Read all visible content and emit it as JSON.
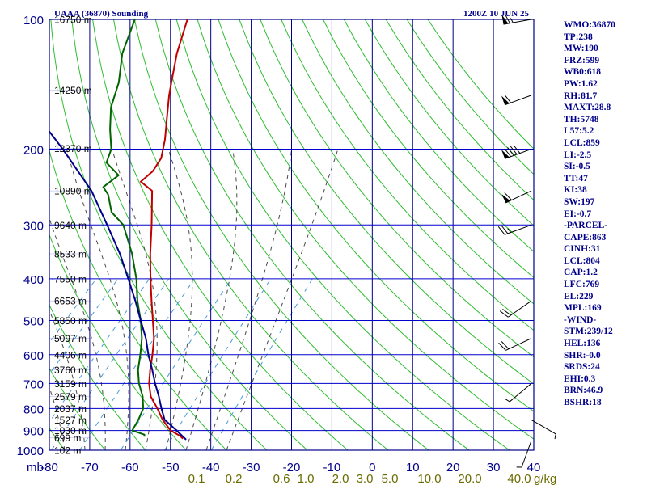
{
  "header": {
    "station": "UAAA (36870) Sounding",
    "valid": "1200Z 10 JUN 25"
  },
  "colors": {
    "background": "#ffffff",
    "frame": "#00008b",
    "isobar": "#0000cd",
    "temp_axis_text": "#00008b",
    "mixing_ratio_text": "#6b6b00",
    "height_label": "#000000",
    "dry_adiabat": "#2ebd2e",
    "moist_adiabat": "#4a4a4a",
    "mixing_ratio_line": "#4a9ad8",
    "temperature": "#c00000",
    "dewpoint": "#006400",
    "parcel": "#00008b",
    "wind_barb": "#000000",
    "indices_text": "#00008b"
  },
  "axes": {
    "pressure_labels": [
      "100",
      "200",
      "300",
      "400",
      "500",
      "600",
      "700",
      "800",
      "900",
      "1000"
    ],
    "temp_ticks": [
      "-80",
      "-70",
      "-60",
      "-50",
      "-40",
      "-30",
      "-20",
      "-10",
      "0",
      "10",
      "20",
      "30",
      "40"
    ],
    "mb_label": "mb",
    "mixing_ratio_labels": [
      "0.1",
      "0.2",
      "0.6",
      "1.0",
      "2.0",
      "3.0",
      "5.0",
      "10.0",
      "20.0",
      "40.0"
    ],
    "mixing_ratio_unit": "g/kg",
    "height_labels": [
      "16750 m",
      "14250 m",
      "12370 m",
      "10890 m",
      "9640 m",
      "8533 m",
      "7550 m",
      "6653 m",
      "5850 m",
      "5097 m",
      "4406 m",
      "3760 m",
      "3159 m",
      "2579 m",
      "2037 m",
      "1527 m",
      "1030 m",
      "699 m",
      "102 m"
    ]
  },
  "indices": [
    "WMO:36870",
    "TP:238",
    "MW:190",
    "FRZ:599",
    "WB0:618",
    "PW:1.62",
    "RH:81.7",
    "MAXT:28.8",
    "TH:5748",
    "L57:5.2",
    "LCL:859",
    "LI:-2.5",
    "SI:-0.5",
    "TT:47",
    "KI:38",
    "SW:197",
    "EI:-0.7",
    "-PARCEL-",
    "CAPE:863",
    "CINH:31",
    "LCL:804",
    "CAP:1.2",
    "LFC:769",
    "EL:229",
    "MPL:169",
    "-WIND-",
    "STM:239/12",
    "HEL:136",
    "SHR:-0.0",
    "SRDS:24",
    "EHI:0.3",
    "BRN:46.9",
    "BSHR:18"
  ],
  "chart_data": {
    "type": "line",
    "title": "UAAA (36870) Sounding",
    "subtitle": "1200Z 10 JUN 25",
    "xlabel": "",
    "ylabel": "mb",
    "xlim": [
      -80,
      40
    ],
    "ylim": [
      1000,
      100
    ],
    "y_scale": "log",
    "x_units": "°C",
    "pressure_ticks": [
      100,
      200,
      300,
      400,
      500,
      600,
      700,
      800,
      900,
      1000
    ],
    "temp_ticks": [
      -80,
      -70,
      -60,
      -50,
      -40,
      -30,
      -20,
      -10,
      0,
      10,
      20,
      30,
      40
    ],
    "mixing_ratio_ticks": [
      0.1,
      0.2,
      0.6,
      1.0,
      2.0,
      3.0,
      5.0,
      10.0,
      20.0,
      40.0
    ],
    "height_levels": [
      {
        "p": 100,
        "h": "16750 m"
      },
      {
        "p": 146,
        "h": "14250 m"
      },
      {
        "p": 199,
        "h": "12370 m"
      },
      {
        "p": 250,
        "h": "10890 m"
      },
      {
        "p": 300,
        "h": "9640 m"
      },
      {
        "p": 350,
        "h": "8533 m"
      },
      {
        "p": 400,
        "h": "7550 m"
      },
      {
        "p": 450,
        "h": "6653 m"
      },
      {
        "p": 500,
        "h": "5850 m"
      },
      {
        "p": 550,
        "h": "5097 m"
      },
      {
        "p": 600,
        "h": "4406 m"
      },
      {
        "p": 650,
        "h": "3760 m"
      },
      {
        "p": 700,
        "h": "3159 m"
      },
      {
        "p": 750,
        "h": "2579 m"
      },
      {
        "p": 800,
        "h": "2037 m"
      },
      {
        "p": 850,
        "h": "1527 m"
      },
      {
        "p": 900,
        "h": "1030 m"
      },
      {
        "p": 935,
        "h": "699 m"
      },
      {
        "p": 1000,
        "h": "102 m"
      }
    ],
    "series": [
      {
        "kind": "temperature",
        "points": [
          [
            940,
            26.5
          ],
          [
            925,
            25.0
          ],
          [
            900,
            21.5
          ],
          [
            850,
            17.0
          ],
          [
            800,
            13.0
          ],
          [
            750,
            8.5
          ],
          [
            700,
            5.0
          ],
          [
            650,
            2.0
          ],
          [
            600,
            -1.0
          ],
          [
            550,
            -4.5
          ],
          [
            500,
            -9.0
          ],
          [
            450,
            -14.0
          ],
          [
            400,
            -19.5
          ],
          [
            350,
            -25.5
          ],
          [
            300,
            -32.0
          ],
          [
            250,
            -40.0
          ],
          [
            238,
            -45.0
          ],
          [
            225,
            -44.5
          ],
          [
            210,
            -45.5
          ],
          [
            190,
            -49.0
          ],
          [
            170,
            -53.5
          ],
          [
            150,
            -58.5
          ],
          [
            140,
            -61.0
          ],
          [
            120,
            -66.5
          ],
          [
            100,
            -72.0
          ]
        ]
      },
      {
        "kind": "dewpoint",
        "points": [
          [
            930,
            16.5
          ],
          [
            920,
            16.0
          ],
          [
            900,
            12.0
          ],
          [
            850,
            11.0
          ],
          [
            800,
            9.5
          ],
          [
            750,
            6.5
          ],
          [
            700,
            2.5
          ],
          [
            650,
            -1.0
          ],
          [
            600,
            -4.0
          ],
          [
            550,
            -7.5
          ],
          [
            500,
            -12.0
          ],
          [
            450,
            -17.5
          ],
          [
            400,
            -23.0
          ],
          [
            350,
            -30.0
          ],
          [
            300,
            -39.0
          ],
          [
            280,
            -45.0
          ],
          [
            255,
            -50.0
          ],
          [
            245,
            -53.0
          ],
          [
            230,
            -52.0
          ],
          [
            215,
            -58.0
          ],
          [
            200,
            -60.0
          ],
          [
            180,
            -65.0
          ],
          [
            160,
            -70.0
          ],
          [
            140,
            -74.0
          ],
          [
            120,
            -80.0
          ],
          [
            100,
            -85.0
          ]
        ]
      },
      {
        "kind": "parcel",
        "points": [
          [
            945,
            27.5
          ],
          [
            900,
            23.0
          ],
          [
            850,
            17.5
          ],
          [
            800,
            14.0
          ],
          [
            750,
            10.5
          ],
          [
            700,
            6.5
          ],
          [
            650,
            2.5
          ],
          [
            600,
            -2.0
          ],
          [
            550,
            -6.5
          ],
          [
            500,
            -12.0
          ],
          [
            450,
            -18.0
          ],
          [
            400,
            -25.0
          ],
          [
            350,
            -33.0
          ],
          [
            300,
            -43.0
          ],
          [
            250,
            -55.0
          ],
          [
            200,
            -72.0
          ],
          [
            150,
            -95.0
          ],
          [
            120,
            -110.0
          ],
          [
            100,
            -120.0
          ]
        ]
      }
    ],
    "wind_barbs": [
      {
        "p": 100,
        "dir": 260,
        "kt": 65
      },
      {
        "p": 150,
        "dir": 250,
        "kt": 60
      },
      {
        "p": 200,
        "dir": 250,
        "kt": 90
      },
      {
        "p": 250,
        "dir": 245,
        "kt": 60
      },
      {
        "p": 300,
        "dir": 250,
        "kt": 25
      },
      {
        "p": 450,
        "dir": 235,
        "kt": 20
      },
      {
        "p": 550,
        "dir": 245,
        "kt": 20
      },
      {
        "p": 700,
        "dir": 230,
        "kt": 5
      },
      {
        "p": 850,
        "dir": 120,
        "kt": 5
      },
      {
        "p": 950,
        "dir": 200,
        "kt": 5
      }
    ]
  }
}
